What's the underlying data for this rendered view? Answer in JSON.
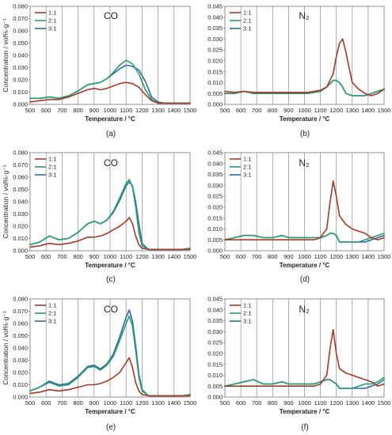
{
  "colors": {
    "1:1": "#a33a2a",
    "2:1": "#2a9a6f",
    "3:1": "#2e6da4"
  },
  "common": {
    "xlabel": "Temperature / °C",
    "ylabel": "Concentration / vol%·g⁻¹",
    "xlim": [
      500,
      1500
    ],
    "xticks": [
      500,
      600,
      700,
      800,
      900,
      1000,
      1100,
      1200,
      1300,
      1400,
      1500
    ],
    "legend": [
      "1:1",
      "2:1",
      "3:1"
    ]
  },
  "chart_data": [
    {
      "type": "line",
      "panel": "(a)",
      "gas": "CO",
      "ylim": [
        0,
        0.08
      ],
      "yticks": [
        0,
        0.01,
        0.02,
        0.03,
        0.04,
        0.05,
        0.06,
        0.07,
        0.08
      ],
      "ydec": 3,
      "xlabel": "Temperature / °C",
      "ylabel": "Concentration / vol%·g⁻¹",
      "x": [
        500,
        560,
        620,
        680,
        740,
        800,
        860,
        900,
        940,
        980,
        1020,
        1060,
        1100,
        1140,
        1180,
        1220,
        1260,
        1300,
        1340,
        1400,
        1450,
        1500
      ],
      "series": [
        {
          "name": "1:1",
          "values": [
            0.002,
            0.003,
            0.004,
            0.004,
            0.006,
            0.009,
            0.012,
            0.013,
            0.012,
            0.013,
            0.015,
            0.017,
            0.018,
            0.017,
            0.014,
            0.008,
            0.003,
            0.001,
            0.001,
            0.001,
            0.001,
            0.001
          ]
        },
        {
          "name": "2:1",
          "values": [
            0.005,
            0.005,
            0.006,
            0.005,
            0.007,
            0.011,
            0.016,
            0.017,
            0.018,
            0.021,
            0.026,
            0.032,
            0.036,
            0.033,
            0.025,
            0.012,
            0.004,
            0.001,
            0.001,
            0.001,
            0.001,
            0.001
          ]
        },
        {
          "name": "3:1",
          "values": [
            0.005,
            0.005,
            0.006,
            0.005,
            0.007,
            0.011,
            0.016,
            0.017,
            0.018,
            0.021,
            0.025,
            0.029,
            0.032,
            0.031,
            0.028,
            0.019,
            0.006,
            0.002,
            0.001,
            0.001,
            0.001,
            0.001
          ]
        }
      ]
    },
    {
      "type": "line",
      "panel": "(b)",
      "gas": "N₂",
      "ylim": [
        0,
        0.045
      ],
      "yticks": [
        0,
        0.005,
        0.01,
        0.015,
        0.02,
        0.025,
        0.03,
        0.035,
        0.04,
        0.045
      ],
      "ydec": 3,
      "xlabel": "Temperature / °C",
      "ylabel": "",
      "x": [
        500,
        560,
        620,
        680,
        740,
        800,
        860,
        900,
        940,
        980,
        1020,
        1060,
        1100,
        1140,
        1180,
        1200,
        1220,
        1240,
        1260,
        1300,
        1340,
        1380,
        1420,
        1460,
        1500
      ],
      "series": [
        {
          "name": "1:1",
          "values": [
            0.006,
            0.0055,
            0.006,
            0.0055,
            0.0055,
            0.0055,
            0.0055,
            0.0055,
            0.0055,
            0.0055,
            0.0055,
            0.006,
            0.0065,
            0.008,
            0.014,
            0.022,
            0.028,
            0.03,
            0.024,
            0.01,
            0.007,
            0.005,
            0.004,
            0.005,
            0.007
          ]
        },
        {
          "name": "2:1",
          "values": [
            0.005,
            0.005,
            0.006,
            0.005,
            0.005,
            0.005,
            0.005,
            0.005,
            0.005,
            0.005,
            0.005,
            0.0055,
            0.006,
            0.008,
            0.011,
            0.011,
            0.01,
            0.008,
            0.005,
            0.004,
            0.004,
            0.004,
            0.005,
            0.006,
            0.007
          ]
        },
        {
          "name": "3:1",
          "values": [
            0.005,
            0.005,
            0.006,
            0.005,
            0.005,
            0.005,
            0.005,
            0.005,
            0.005,
            0.005,
            0.005,
            0.0055,
            0.006,
            0.008,
            0.011,
            0.011,
            0.01,
            0.008,
            0.005,
            0.004,
            0.004,
            0.004,
            0.005,
            0.006,
            0.007
          ]
        }
      ]
    },
    {
      "type": "line",
      "panel": "(c)",
      "gas": "CO",
      "ylim": [
        0,
        0.08
      ],
      "yticks": [
        0,
        0.01,
        0.02,
        0.03,
        0.04,
        0.05,
        0.06,
        0.07,
        0.08
      ],
      "ydec": 3,
      "xlabel": "Temperature / °C",
      "ylabel": "Concentration / vol%·g⁻¹",
      "x": [
        500,
        560,
        620,
        680,
        740,
        800,
        860,
        900,
        940,
        980,
        1020,
        1060,
        1100,
        1120,
        1140,
        1160,
        1180,
        1200,
        1240,
        1280,
        1340,
        1400,
        1450,
        1500
      ],
      "series": [
        {
          "name": "1:1",
          "values": [
            0.003,
            0.004,
            0.006,
            0.005,
            0.006,
            0.008,
            0.011,
            0.011,
            0.012,
            0.014,
            0.017,
            0.02,
            0.024,
            0.027,
            0.022,
            0.012,
            0.005,
            0.002,
            0.001,
            0.001,
            0.001,
            0.001,
            0.001,
            0.001
          ]
        },
        {
          "name": "2:1",
          "values": [
            0.005,
            0.007,
            0.012,
            0.009,
            0.01,
            0.015,
            0.022,
            0.024,
            0.022,
            0.025,
            0.032,
            0.043,
            0.055,
            0.058,
            0.052,
            0.036,
            0.015,
            0.004,
            0.001,
            0.001,
            0.001,
            0.001,
            0.001,
            0.002
          ]
        },
        {
          "name": "3:1",
          "values": [
            0.005,
            0.007,
            0.012,
            0.009,
            0.01,
            0.015,
            0.022,
            0.024,
            0.022,
            0.025,
            0.031,
            0.041,
            0.053,
            0.056,
            0.053,
            0.04,
            0.022,
            0.006,
            0.001,
            0.001,
            0.001,
            0.001,
            0.001,
            0.002
          ]
        }
      ]
    },
    {
      "type": "line",
      "panel": "(d)",
      "gas": "N₂",
      "ylim": [
        0,
        0.045
      ],
      "yticks": [
        0,
        0.005,
        0.01,
        0.015,
        0.02,
        0.025,
        0.03,
        0.035,
        0.04,
        0.045
      ],
      "ydec": 3,
      "xlabel": "Temperature / °C",
      "ylabel": "",
      "x": [
        500,
        560,
        620,
        680,
        740,
        800,
        860,
        900,
        940,
        980,
        1020,
        1060,
        1100,
        1140,
        1160,
        1180,
        1200,
        1220,
        1260,
        1300,
        1340,
        1380,
        1420,
        1460,
        1500
      ],
      "series": [
        {
          "name": "1:1",
          "values": [
            0.005,
            0.005,
            0.005,
            0.005,
            0.005,
            0.005,
            0.005,
            0.005,
            0.005,
            0.005,
            0.005,
            0.005,
            0.006,
            0.01,
            0.022,
            0.032,
            0.025,
            0.016,
            0.012,
            0.01,
            0.009,
            0.008,
            0.006,
            0.005,
            0.006
          ]
        },
        {
          "name": "2:1",
          "values": [
            0.005,
            0.006,
            0.007,
            0.007,
            0.006,
            0.006,
            0.007,
            0.006,
            0.006,
            0.006,
            0.006,
            0.006,
            0.006,
            0.007,
            0.008,
            0.008,
            0.007,
            0.004,
            0.004,
            0.004,
            0.004,
            0.005,
            0.006,
            0.007,
            0.008
          ]
        },
        {
          "name": "3:1",
          "values": [
            0.005,
            0.006,
            0.007,
            0.007,
            0.006,
            0.006,
            0.007,
            0.006,
            0.006,
            0.006,
            0.006,
            0.006,
            0.006,
            0.007,
            0.008,
            0.008,
            0.007,
            0.004,
            0.004,
            0.004,
            0.004,
            0.004,
            0.005,
            0.006,
            0.007
          ]
        }
      ]
    },
    {
      "type": "line",
      "panel": "(e)",
      "gas": "CO",
      "ylim": [
        0,
        0.08
      ],
      "yticks": [
        0,
        0.01,
        0.02,
        0.03,
        0.04,
        0.05,
        0.06,
        0.07,
        0.08
      ],
      "ydec": 3,
      "xlabel": "Temperature / °C",
      "ylabel": "Concentration / vol%·g⁻¹",
      "x": [
        500,
        560,
        620,
        680,
        740,
        800,
        860,
        900,
        940,
        980,
        1020,
        1060,
        1100,
        1120,
        1140,
        1160,
        1180,
        1200,
        1240,
        1280,
        1340,
        1400,
        1450,
        1500
      ],
      "series": [
        {
          "name": "1:1",
          "values": [
            0.003,
            0.004,
            0.006,
            0.005,
            0.006,
            0.008,
            0.01,
            0.01,
            0.011,
            0.013,
            0.016,
            0.02,
            0.028,
            0.032,
            0.024,
            0.012,
            0.005,
            0.002,
            0.001,
            0.001,
            0.001,
            0.001,
            0.001,
            0.001
          ]
        },
        {
          "name": "2:1",
          "values": [
            0.005,
            0.008,
            0.012,
            0.009,
            0.01,
            0.016,
            0.024,
            0.025,
            0.022,
            0.026,
            0.033,
            0.046,
            0.06,
            0.066,
            0.058,
            0.038,
            0.016,
            0.005,
            0.001,
            0.001,
            0.001,
            0.001,
            0.001,
            0.002
          ]
        },
        {
          "name": "3:1",
          "values": [
            0.005,
            0.008,
            0.013,
            0.01,
            0.011,
            0.017,
            0.025,
            0.026,
            0.023,
            0.027,
            0.035,
            0.049,
            0.065,
            0.071,
            0.062,
            0.042,
            0.019,
            0.006,
            0.001,
            0.001,
            0.001,
            0.001,
            0.001,
            0.002
          ]
        }
      ]
    },
    {
      "type": "line",
      "panel": "(f)",
      "gas": "N₂",
      "ylim": [
        0,
        0.045
      ],
      "yticks": [
        0,
        0.005,
        0.01,
        0.015,
        0.02,
        0.025,
        0.03,
        0.035,
        0.04,
        0.045
      ],
      "ydec": 3,
      "xlabel": "Temperature / °C",
      "ylabel": "",
      "x": [
        500,
        560,
        620,
        680,
        740,
        800,
        860,
        900,
        940,
        980,
        1020,
        1060,
        1100,
        1140,
        1160,
        1180,
        1200,
        1220,
        1260,
        1300,
        1340,
        1380,
        1420,
        1460,
        1500
      ],
      "series": [
        {
          "name": "1:1",
          "values": [
            0.005,
            0.005,
            0.005,
            0.005,
            0.005,
            0.005,
            0.005,
            0.005,
            0.005,
            0.005,
            0.005,
            0.005,
            0.006,
            0.01,
            0.022,
            0.031,
            0.02,
            0.013,
            0.011,
            0.01,
            0.009,
            0.008,
            0.007,
            0.005,
            0.006
          ]
        },
        {
          "name": "2:1",
          "values": [
            0.005,
            0.006,
            0.007,
            0.008,
            0.006,
            0.006,
            0.007,
            0.006,
            0.006,
            0.006,
            0.006,
            0.006,
            0.007,
            0.008,
            0.008,
            0.007,
            0.006,
            0.004,
            0.004,
            0.004,
            0.005,
            0.006,
            0.006,
            0.007,
            0.009
          ]
        },
        {
          "name": "3:1",
          "values": [
            0.005,
            0.006,
            0.007,
            0.008,
            0.006,
            0.006,
            0.007,
            0.006,
            0.006,
            0.006,
            0.006,
            0.006,
            0.007,
            0.008,
            0.008,
            0.007,
            0.006,
            0.004,
            0.004,
            0.004,
            0.004,
            0.004,
            0.005,
            0.006,
            0.008
          ]
        }
      ]
    }
  ]
}
